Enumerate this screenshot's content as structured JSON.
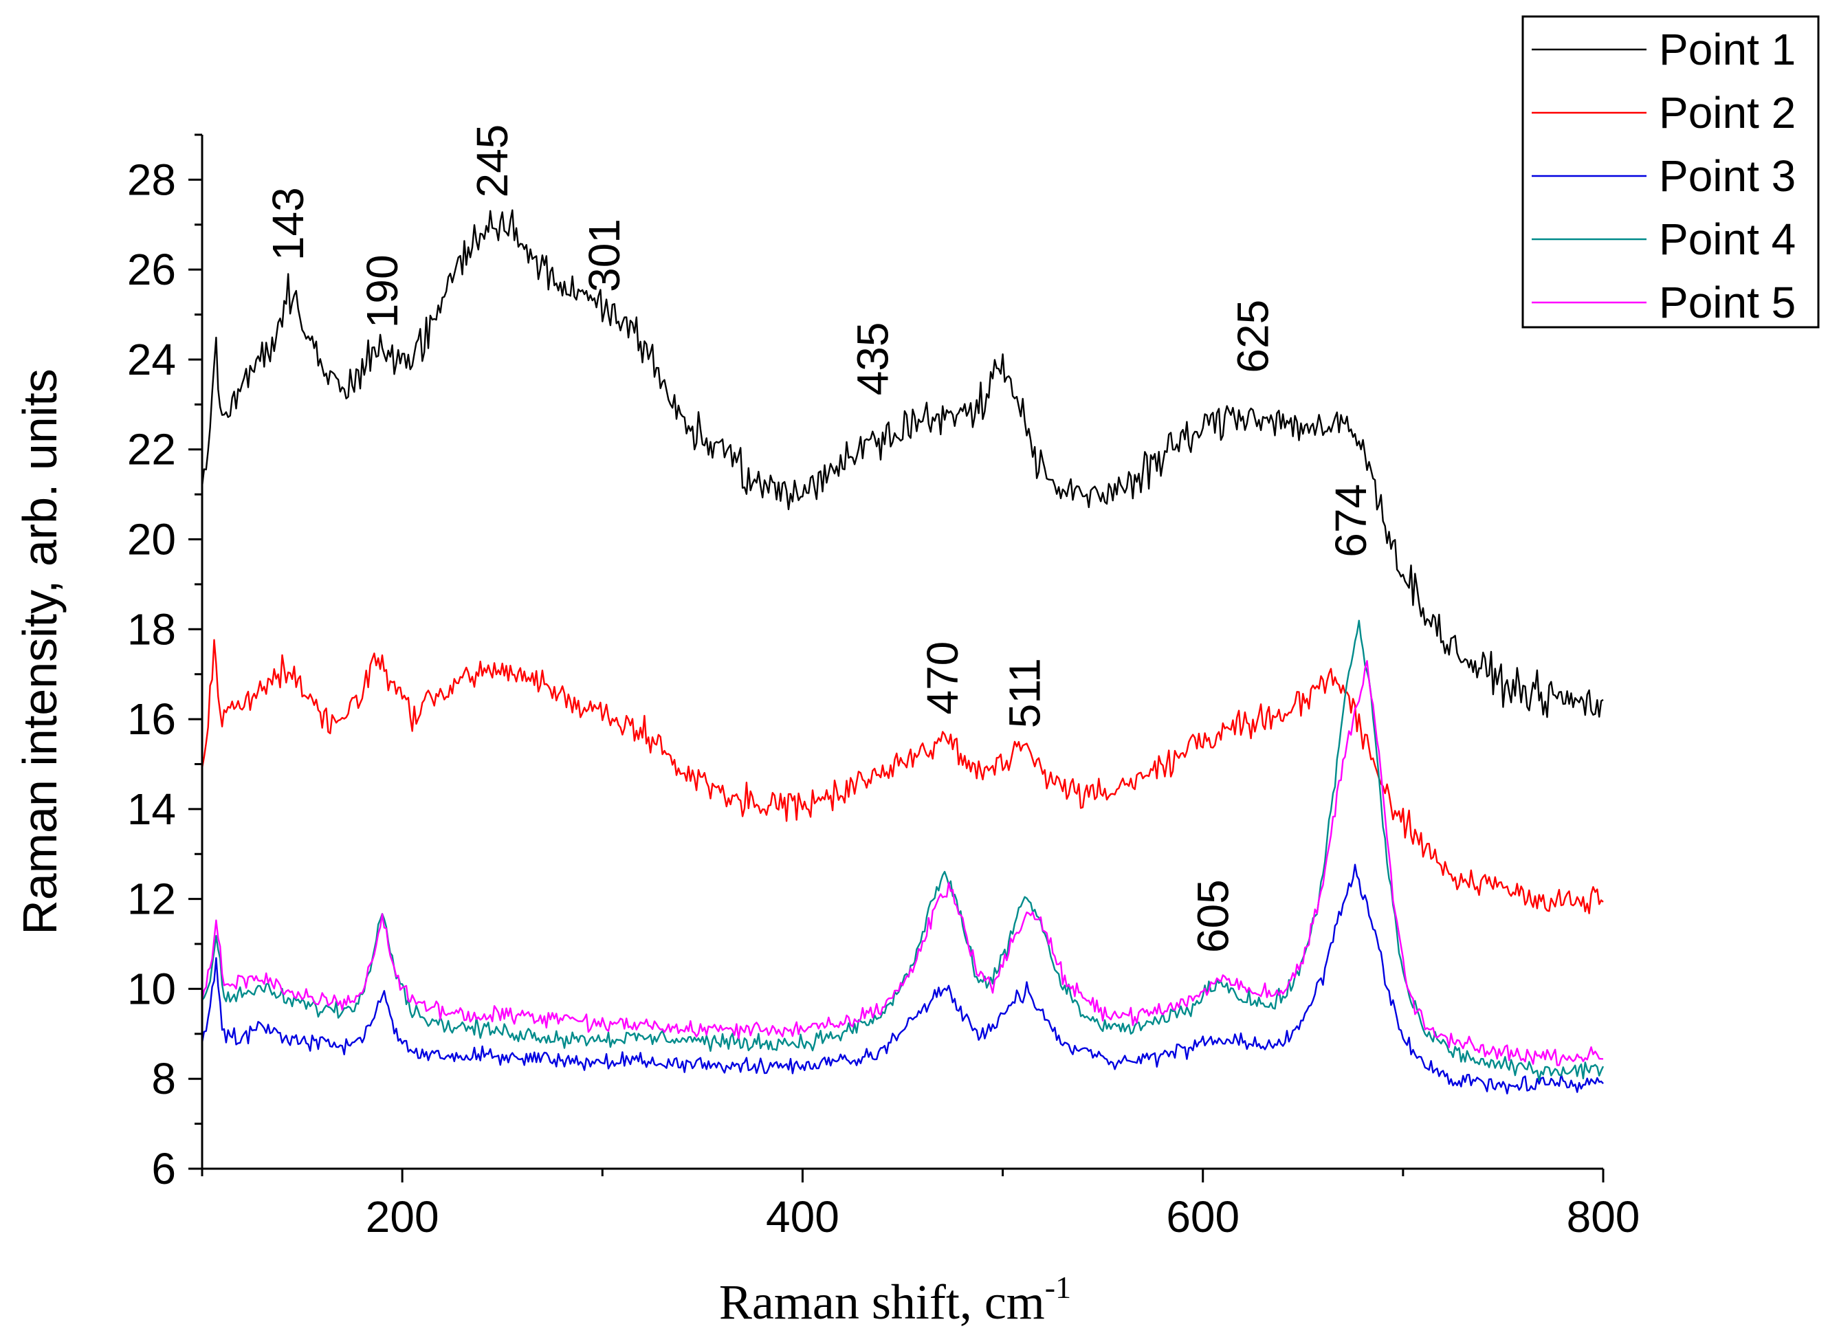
{
  "chart_data": {
    "type": "line",
    "title": "",
    "xlabel": "Raman shift, cm",
    "xlabel_superscript": "-1",
    "ylabel": "Raman intensity, arb. units",
    "xlim": [
      100,
      800
    ],
    "ylim": [
      6,
      29
    ],
    "xticks": [
      200,
      400,
      600,
      800
    ],
    "yticks": [
      6,
      8,
      10,
      12,
      14,
      16,
      18,
      20,
      22,
      24,
      26,
      28
    ],
    "legend_position": "top-right",
    "series": [
      {
        "name": "Point 1",
        "color": "#000000",
        "noise": 0.45,
        "points": [
          [
            100,
            21.0
          ],
          [
            104,
            22.5
          ],
          [
            107,
            24.3
          ],
          [
            110,
            22.5
          ],
          [
            115,
            23.0
          ],
          [
            120,
            23.6
          ],
          [
            130,
            24.1
          ],
          [
            137,
            24.5
          ],
          [
            143,
            25.7
          ],
          [
            150,
            24.8
          ],
          [
            160,
            23.8
          ],
          [
            170,
            23.3
          ],
          [
            180,
            23.7
          ],
          [
            190,
            24.4
          ],
          [
            200,
            23.9
          ],
          [
            210,
            24.3
          ],
          [
            220,
            25.3
          ],
          [
            230,
            26.3
          ],
          [
            245,
            27.0
          ],
          [
            255,
            26.9
          ],
          [
            265,
            26.3
          ],
          [
            280,
            25.6
          ],
          [
            301,
            25.1
          ],
          [
            315,
            24.7
          ],
          [
            325,
            24.0
          ],
          [
            335,
            23.0
          ],
          [
            345,
            22.5
          ],
          [
            360,
            21.9
          ],
          [
            375,
            21.3
          ],
          [
            390,
            21.0
          ],
          [
            400,
            21.1
          ],
          [
            410,
            21.4
          ],
          [
            420,
            21.7
          ],
          [
            435,
            22.2
          ],
          [
            450,
            22.6
          ],
          [
            465,
            22.6
          ],
          [
            480,
            22.8
          ],
          [
            490,
            23.1
          ],
          [
            500,
            24.0
          ],
          [
            505,
            23.5
          ],
          [
            512,
            22.4
          ],
          [
            520,
            21.5
          ],
          [
            530,
            21.0
          ],
          [
            545,
            20.9
          ],
          [
            560,
            21.2
          ],
          [
            575,
            21.7
          ],
          [
            590,
            22.2
          ],
          [
            610,
            22.7
          ],
          [
            625,
            22.8
          ],
          [
            640,
            22.6
          ],
          [
            655,
            22.5
          ],
          [
            665,
            22.4
          ],
          [
            672,
            22.6
          ],
          [
            680,
            22.0
          ],
          [
            690,
            20.5
          ],
          [
            700,
            19.3
          ],
          [
            710,
            18.5
          ],
          [
            720,
            17.8
          ],
          [
            735,
            17.2
          ],
          [
            750,
            16.8
          ],
          [
            770,
            16.5
          ],
          [
            800,
            16.3
          ]
        ]
      },
      {
        "name": "Point 2",
        "color": "#ff0000",
        "noise": 0.35,
        "points": [
          [
            100,
            15.0
          ],
          [
            103,
            15.8
          ],
          [
            106,
            17.8
          ],
          [
            109,
            16.0
          ],
          [
            115,
            16.2
          ],
          [
            125,
            16.5
          ],
          [
            140,
            17.1
          ],
          [
            150,
            16.7
          ],
          [
            160,
            16.1
          ],
          [
            170,
            15.9
          ],
          [
            180,
            16.6
          ],
          [
            187,
            17.5
          ],
          [
            195,
            16.8
          ],
          [
            205,
            16.1
          ],
          [
            220,
            16.6
          ],
          [
            235,
            17.0
          ],
          [
            250,
            17.1
          ],
          [
            265,
            16.9
          ],
          [
            280,
            16.5
          ],
          [
            300,
            16.1
          ],
          [
            320,
            15.7
          ],
          [
            340,
            14.9
          ],
          [
            360,
            14.4
          ],
          [
            380,
            14.1
          ],
          [
            400,
            14.0
          ],
          [
            420,
            14.4
          ],
          [
            440,
            14.9
          ],
          [
            455,
            15.2
          ],
          [
            470,
            15.6
          ],
          [
            485,
            14.9
          ],
          [
            500,
            15.0
          ],
          [
            511,
            15.4
          ],
          [
            520,
            14.8
          ],
          [
            535,
            14.4
          ],
          [
            550,
            14.3
          ],
          [
            570,
            14.7
          ],
          [
            590,
            15.3
          ],
          [
            610,
            15.8
          ],
          [
            630,
            16.0
          ],
          [
            650,
            16.4
          ],
          [
            665,
            17.0
          ],
          [
            675,
            16.2
          ],
          [
            685,
            15.1
          ],
          [
            695,
            14.0
          ],
          [
            710,
            13.2
          ],
          [
            725,
            12.6
          ],
          [
            745,
            12.2
          ],
          [
            770,
            12.0
          ],
          [
            800,
            11.9
          ]
        ]
      },
      {
        "name": "Point 3",
        "color": "#0000e0",
        "noise": 0.2,
        "points": [
          [
            100,
            8.9
          ],
          [
            104,
            9.5
          ],
          [
            107,
            10.6
          ],
          [
            110,
            9.0
          ],
          [
            120,
            8.9
          ],
          [
            130,
            9.2
          ],
          [
            140,
            8.9
          ],
          [
            155,
            8.8
          ],
          [
            170,
            8.7
          ],
          [
            180,
            8.9
          ],
          [
            186,
            9.4
          ],
          [
            191,
            9.9
          ],
          [
            197,
            9.0
          ],
          [
            205,
            8.6
          ],
          [
            220,
            8.5
          ],
          [
            240,
            8.5
          ],
          [
            260,
            8.5
          ],
          [
            280,
            8.4
          ],
          [
            300,
            8.4
          ],
          [
            320,
            8.4
          ],
          [
            340,
            8.3
          ],
          [
            360,
            8.3
          ],
          [
            380,
            8.3
          ],
          [
            400,
            8.3
          ],
          [
            420,
            8.4
          ],
          [
            440,
            8.6
          ],
          [
            455,
            9.3
          ],
          [
            465,
            9.9
          ],
          [
            472,
            10.0
          ],
          [
            480,
            9.5
          ],
          [
            488,
            9.0
          ],
          [
            495,
            9.1
          ],
          [
            505,
            9.7
          ],
          [
            512,
            9.9
          ],
          [
            520,
            9.4
          ],
          [
            530,
            8.8
          ],
          [
            545,
            8.5
          ],
          [
            560,
            8.4
          ],
          [
            580,
            8.5
          ],
          [
            600,
            8.8
          ],
          [
            610,
            8.9
          ],
          [
            625,
            8.7
          ],
          [
            640,
            8.8
          ],
          [
            650,
            9.3
          ],
          [
            660,
            10.3
          ],
          [
            668,
            11.7
          ],
          [
            676,
            12.6
          ],
          [
            684,
            11.6
          ],
          [
            692,
            10.0
          ],
          [
            700,
            8.9
          ],
          [
            710,
            8.3
          ],
          [
            725,
            8.0
          ],
          [
            745,
            7.9
          ],
          [
            770,
            7.9
          ],
          [
            800,
            7.9
          ]
        ]
      },
      {
        "name": "Point 4",
        "color": "#008b8b",
        "noise": 0.2,
        "points": [
          [
            100,
            9.6
          ],
          [
            104,
            10.2
          ],
          [
            107,
            11.3
          ],
          [
            111,
            9.8
          ],
          [
            120,
            9.9
          ],
          [
            130,
            10.0
          ],
          [
            140,
            9.8
          ],
          [
            155,
            9.6
          ],
          [
            170,
            9.5
          ],
          [
            180,
            9.8
          ],
          [
            186,
            10.9
          ],
          [
            190,
            11.9
          ],
          [
            196,
            10.5
          ],
          [
            205,
            9.5
          ],
          [
            220,
            9.2
          ],
          [
            240,
            9.1
          ],
          [
            260,
            9.0
          ],
          [
            280,
            8.9
          ],
          [
            300,
            8.9
          ],
          [
            320,
            8.9
          ],
          [
            340,
            8.9
          ],
          [
            360,
            8.8
          ],
          [
            380,
            8.8
          ],
          [
            400,
            8.8
          ],
          [
            420,
            9.0
          ],
          [
            440,
            9.4
          ],
          [
            455,
            10.5
          ],
          [
            465,
            12.0
          ],
          [
            471,
            12.6
          ],
          [
            478,
            11.8
          ],
          [
            486,
            10.3
          ],
          [
            493,
            10.0
          ],
          [
            502,
            10.9
          ],
          [
            511,
            12.1
          ],
          [
            518,
            11.6
          ],
          [
            528,
            10.2
          ],
          [
            540,
            9.4
          ],
          [
            555,
            9.1
          ],
          [
            575,
            9.2
          ],
          [
            595,
            9.6
          ],
          [
            608,
            10.2
          ],
          [
            620,
            9.8
          ],
          [
            635,
            9.6
          ],
          [
            648,
            10.3
          ],
          [
            658,
            12.0
          ],
          [
            666,
            14.6
          ],
          [
            672,
            16.8
          ],
          [
            678,
            18.1
          ],
          [
            684,
            16.5
          ],
          [
            692,
            12.8
          ],
          [
            700,
            10.3
          ],
          [
            710,
            9.1
          ],
          [
            725,
            8.6
          ],
          [
            745,
            8.3
          ],
          [
            770,
            8.2
          ],
          [
            800,
            8.2
          ]
        ]
      },
      {
        "name": "Point 5",
        "color": "#ff00ff",
        "noise": 0.2,
        "points": [
          [
            100,
            9.8
          ],
          [
            104,
            10.4
          ],
          [
            107,
            11.5
          ],
          [
            111,
            10.1
          ],
          [
            120,
            10.2
          ],
          [
            130,
            10.2
          ],
          [
            140,
            10.0
          ],
          [
            155,
            9.8
          ],
          [
            170,
            9.7
          ],
          [
            180,
            9.9
          ],
          [
            186,
            10.8
          ],
          [
            190,
            11.6
          ],
          [
            196,
            10.4
          ],
          [
            205,
            9.7
          ],
          [
            220,
            9.5
          ],
          [
            240,
            9.4
          ],
          [
            260,
            9.4
          ],
          [
            280,
            9.3
          ],
          [
            300,
            9.2
          ],
          [
            320,
            9.2
          ],
          [
            340,
            9.1
          ],
          [
            360,
            9.1
          ],
          [
            380,
            9.1
          ],
          [
            400,
            9.1
          ],
          [
            420,
            9.2
          ],
          [
            440,
            9.6
          ],
          [
            455,
            10.4
          ],
          [
            466,
            11.8
          ],
          [
            473,
            12.3
          ],
          [
            480,
            11.5
          ],
          [
            488,
            10.3
          ],
          [
            495,
            10.1
          ],
          [
            505,
            11.0
          ],
          [
            513,
            11.8
          ],
          [
            521,
            11.3
          ],
          [
            532,
            10.1
          ],
          [
            545,
            9.6
          ],
          [
            560,
            9.4
          ],
          [
            580,
            9.5
          ],
          [
            600,
            9.9
          ],
          [
            610,
            10.3
          ],
          [
            622,
            10.0
          ],
          [
            638,
            9.9
          ],
          [
            650,
            10.6
          ],
          [
            660,
            12.3
          ],
          [
            668,
            14.6
          ],
          [
            675,
            16.0
          ],
          [
            682,
            17.3
          ],
          [
            688,
            15.2
          ],
          [
            695,
            12.0
          ],
          [
            702,
            10.0
          ],
          [
            712,
            9.1
          ],
          [
            725,
            8.8
          ],
          [
            745,
            8.6
          ],
          [
            770,
            8.5
          ],
          [
            800,
            8.5
          ]
        ]
      }
    ],
    "annotations": [
      {
        "text": "143",
        "x": 143,
        "y": 26.2
      },
      {
        "text": "190",
        "x": 190,
        "y": 24.7
      },
      {
        "text": "245",
        "x": 245,
        "y": 27.6
      },
      {
        "text": "301",
        "x": 301,
        "y": 25.5
      },
      {
        "text": "435",
        "x": 435,
        "y": 23.2
      },
      {
        "text": "625",
        "x": 625,
        "y": 23.7
      },
      {
        "text": "674",
        "x": 674,
        "y": 19.6
      },
      {
        "text": "470",
        "x": 470,
        "y": 16.1
      },
      {
        "text": "511",
        "x": 511,
        "y": 15.8
      },
      {
        "text": "605",
        "x": 605,
        "y": 10.8
      }
    ]
  }
}
